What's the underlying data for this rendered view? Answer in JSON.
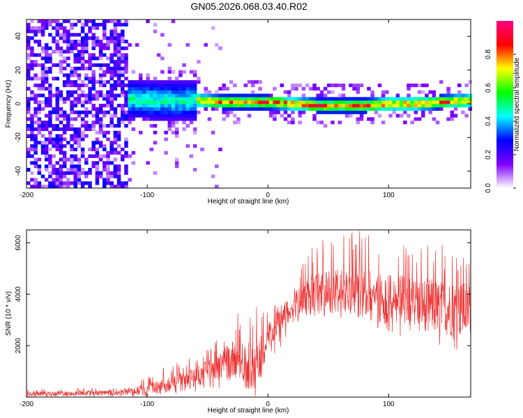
{
  "figure": {
    "title": "GN05.2026.068.03.40.R02"
  },
  "chart_data": [
    {
      "type": "heatmap",
      "title": "GN05.2026.068.03.40.R02",
      "xlabel": "Height of straight line (km)",
      "ylabel": "Frequency (Hz)",
      "xlim": [
        -200,
        168
      ],
      "ylim": [
        -50,
        50
      ],
      "x_ticks": [
        "-200",
        "-100",
        "0",
        "100"
      ],
      "x_tick_values": [
        -200,
        -100,
        0,
        100
      ],
      "y_ticks": [
        "-40",
        "-20",
        "0",
        "20",
        "40"
      ],
      "y_tick_values": [
        -40,
        -20,
        0,
        20,
        40
      ],
      "colorbar": {
        "label": "Normalized spectral amplitude",
        "range": [
          0,
          1
        ],
        "ticks": [
          "0.0",
          "0.2",
          "0.4",
          "0.6",
          "0.8"
        ],
        "tick_values": [
          0,
          0.2,
          0.4,
          0.6,
          0.8
        ],
        "colormap": [
          "#ffffff",
          "#7f00ff",
          "#0000ff",
          "#00ffff",
          "#00ff00",
          "#ffff00",
          "#ff0000",
          "#ff0080"
        ]
      },
      "regions": [
        {
          "x_range": [
            -200,
            -118
          ],
          "freq_spread": [
            -50,
            50
          ],
          "amplitude": [
            0.05,
            0.3
          ]
        },
        {
          "x_range": [
            -118,
            -60
          ],
          "freq_spread": [
            -10,
            12
          ],
          "amplitude": [
            0.2,
            0.55
          ]
        },
        {
          "x_range": [
            -60,
            168
          ],
          "freq_spread": [
            -4,
            4
          ],
          "amplitude": [
            0.3,
            0.95
          ]
        }
      ],
      "ridge": {
        "x": [
          -118,
          -100,
          -80,
          -60,
          -40,
          -20,
          0,
          20,
          40,
          60,
          80,
          100,
          120,
          140,
          168
        ],
        "y": [
          2,
          1,
          1,
          1,
          0,
          0,
          0,
          -1,
          -2,
          -2,
          -2,
          -1,
          -1,
          0,
          1
        ]
      },
      "grid": false
    },
    {
      "type": "line",
      "xlabel": "Height of straight line (km)",
      "ylabel": "SNR (10 * v/v)",
      "xlim": [
        -200,
        168
      ],
      "ylim": [
        0,
        6500
      ],
      "x_ticks": [
        "-200",
        "-100",
        "0",
        "100"
      ],
      "x_tick_values": [
        -200,
        -100,
        0,
        100
      ],
      "y_ticks": [
        "2000",
        "4000",
        "6000"
      ],
      "y_tick_values": [
        2000,
        4000,
        6000
      ],
      "color": "#ee3333",
      "envelope": {
        "x": [
          -200,
          -150,
          -120,
          -100,
          -80,
          -60,
          -40,
          -25,
          -10,
          0,
          10,
          20,
          30,
          40,
          60,
          80,
          100,
          120,
          140,
          160,
          168
        ],
        "mean": [
          120,
          150,
          180,
          300,
          500,
          800,
          1200,
          1500,
          1000,
          2200,
          3000,
          3500,
          3800,
          4000,
          4100,
          4000,
          3800,
          3700,
          3500,
          3400,
          3400
        ],
        "max": [
          300,
          350,
          350,
          800,
          1300,
          1600,
          2300,
          3300,
          3700,
          3400,
          3700,
          4300,
          5300,
          6200,
          6400,
          6500,
          6100,
          5800,
          6000,
          5800,
          5500
        ],
        "min": [
          0,
          0,
          0,
          0,
          100,
          200,
          300,
          200,
          0,
          1000,
          1900,
          2600,
          3000,
          3000,
          3000,
          2800,
          2500,
          2200,
          2000,
          1800,
          1800
        ]
      },
      "grid": false
    }
  ]
}
